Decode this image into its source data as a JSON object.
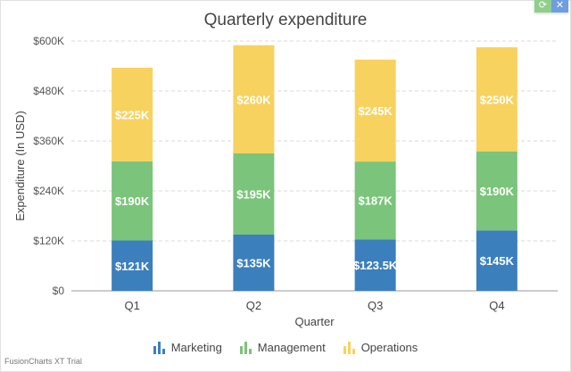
{
  "chart_data": {
    "type": "stacked-bar",
    "title": "Quarterly expenditure",
    "xlabel": "Quarter",
    "ylabel": "Expenditure (In USD)",
    "categories": [
      "Q1",
      "Q2",
      "Q3",
      "Q4"
    ],
    "ylim": [
      0,
      600000
    ],
    "yticks": [
      0,
      120000,
      240000,
      360000,
      480000,
      600000
    ],
    "ytick_labels": [
      "$0",
      "$120K",
      "$240K",
      "$360K",
      "$480K",
      "$600K"
    ],
    "grid": true,
    "legend_position": "bottom",
    "series": [
      {
        "name": "Marketing",
        "color": "#3c7fbd",
        "values": [
          121000,
          135000,
          123500,
          145000
        ],
        "labels": [
          "$121K",
          "$135K",
          "$123.5K",
          "$145K"
        ]
      },
      {
        "name": "Management",
        "color": "#7bc47b",
        "values": [
          190000,
          195000,
          187000,
          190000
        ],
        "labels": [
          "$190K",
          "$195K",
          "$187K",
          "$190K"
        ]
      },
      {
        "name": "Operations",
        "color": "#f8d25f",
        "values": [
          225000,
          260000,
          245000,
          250000
        ],
        "labels": [
          "$225K",
          "$260K",
          "$245K",
          "$250K"
        ]
      }
    ]
  },
  "toolbar": {
    "refresh_icon": "refresh-icon",
    "fullscreen_icon": "expand-icon",
    "refresh_color": "#8fcf8a",
    "expand_color": "#6e9de0"
  },
  "footer": {
    "trial_text": "FusionCharts XT Trial"
  }
}
